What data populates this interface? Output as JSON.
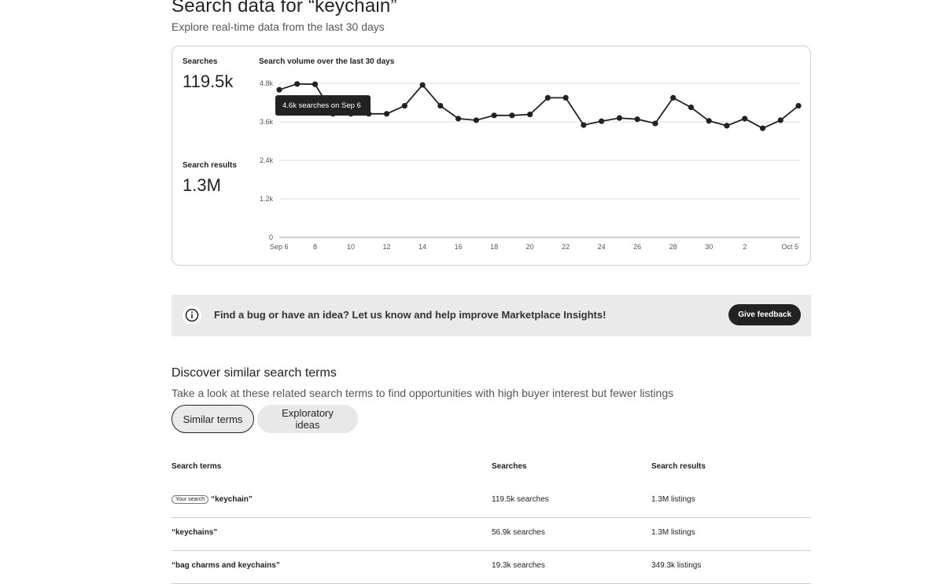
{
  "header": {
    "title": "Search data for “keychain”",
    "subtitle": "Explore real-time data from the last 30 days"
  },
  "stats": {
    "searches_label": "Searches",
    "searches_value": "119.5k",
    "results_label": "Search results",
    "results_value": "1.3M"
  },
  "chart_data": {
    "type": "line",
    "title": "Search volume over the last 30 days",
    "xlabel": "",
    "ylabel": "",
    "x": [
      "Sep 6",
      "Sep 7",
      "Sep 8",
      "Sep 9",
      "Sep 10",
      "Sep 11",
      "Sep 12",
      "Sep 13",
      "Sep 14",
      "Sep 15",
      "Sep 16",
      "Sep 17",
      "Sep 18",
      "Sep 19",
      "Sep 20",
      "Sep 21",
      "Sep 22",
      "Sep 23",
      "Sep 24",
      "Sep 25",
      "Sep 26",
      "Sep 27",
      "Sep 28",
      "Sep 29",
      "Sep 30",
      "Oct 1",
      "Oct 2",
      "Oct 3",
      "Oct 4",
      "Oct 5"
    ],
    "series": [
      {
        "values": [
          4600,
          4780,
          4770,
          3850,
          3850,
          3850,
          3850,
          4100,
          4750,
          4100,
          3700,
          3650,
          3800,
          3800,
          3830,
          4350,
          4350,
          3500,
          3620,
          3720,
          3680,
          3550,
          4350,
          4050,
          3630,
          3480,
          3700,
          3400,
          3650,
          4100
        ]
      }
    ],
    "ylim": [
      0,
      4800
    ],
    "y_ticks": [
      "0",
      "1.2k",
      "2.4k",
      "3.6k",
      "4.8k"
    ],
    "x_ticks": [
      "Sep 6",
      "8",
      "10",
      "12",
      "14",
      "16",
      "18",
      "20",
      "22",
      "24",
      "26",
      "28",
      "30",
      "2",
      "Oct 5"
    ],
    "grid": true,
    "tooltip": "4.6k searches on Sep 6",
    "color": "#222222"
  },
  "feedback": {
    "text": "Find a bug or have an idea? Let us know and help improve Marketplace Insights!",
    "button_label": "Give feedback",
    "icon": "info-icon"
  },
  "discover": {
    "title": "Discover similar search terms",
    "subtitle": "Take a look at these related search terms to find opportunities with high buyer interest but fewer listings",
    "tabs": [
      {
        "label": "Similar terms",
        "active": true
      },
      {
        "label": "Exploratory ideas",
        "active": false
      }
    ]
  },
  "table": {
    "headers": [
      "Search terms",
      "Searches",
      "Search results"
    ],
    "your_search_badge": "Your search",
    "rows": [
      {
        "term": "“keychain”",
        "searches": "119.5k searches",
        "results": "1.3M listings",
        "yours": true
      },
      {
        "term": "“keychains”",
        "searches": "56.9k searches",
        "results": "1.3M listings",
        "yours": false
      },
      {
        "term": "“bag charms and keychains”",
        "searches": "19.3k searches",
        "results": "349.3k listings",
        "yours": false
      }
    ]
  }
}
